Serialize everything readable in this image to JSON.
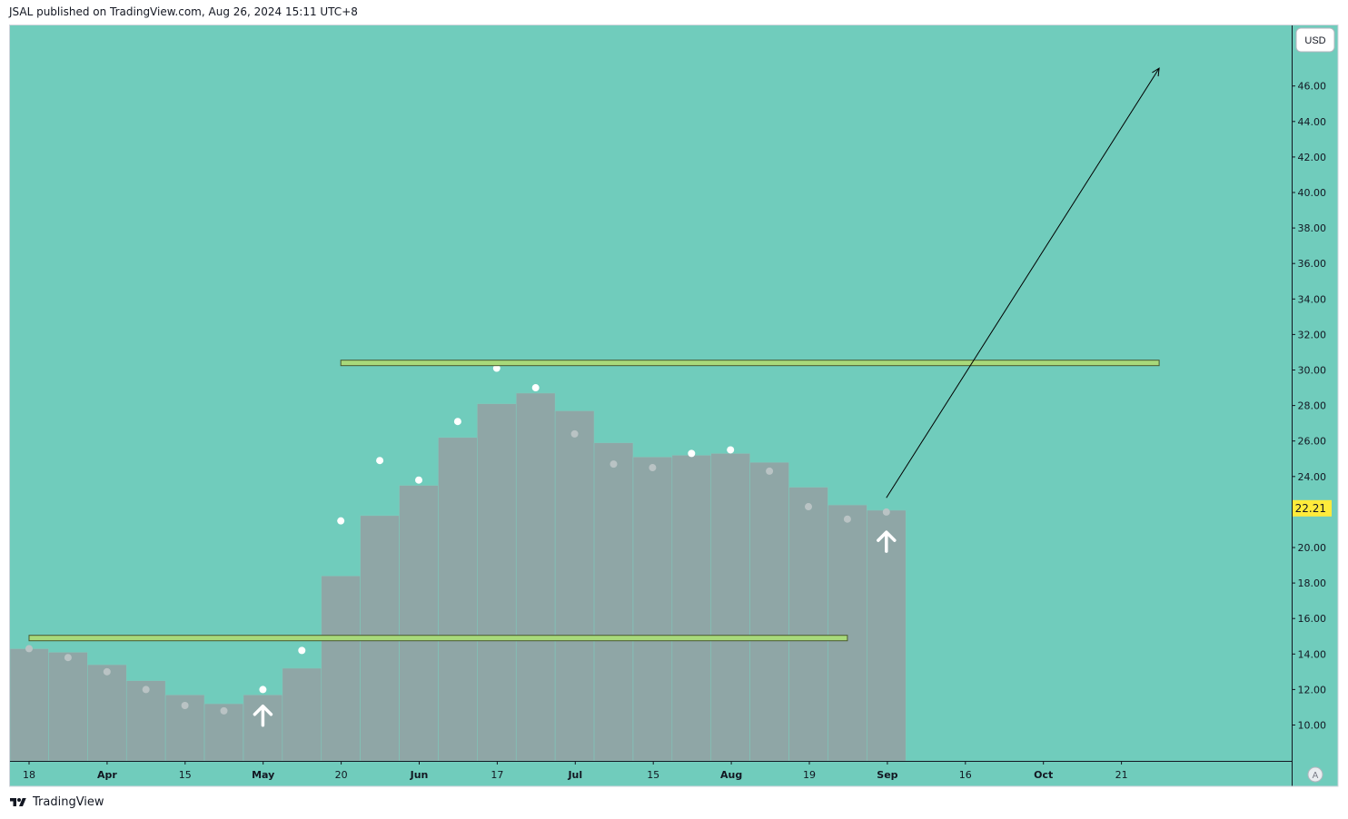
{
  "header": {
    "published_text": "JSAL published on TradingView.com, Aug 26, 2024 15:11 UTC+8"
  },
  "footer": {
    "brand": "TradingView"
  },
  "axis": {
    "currency": "USD",
    "last_price_label": "22.21",
    "scale_mode": "A"
  },
  "colors": {
    "background": "#70ccbc",
    "bars": "#8fa6a6",
    "bar_edge": "#7fc9bb",
    "dots_bright": "#ffffff",
    "dots_faint": "#b9c3c4",
    "level_fill": "#a8d97a",
    "level_stroke": "#4a5a30",
    "price_tag": "#ffeb3b",
    "arrow": "#000000"
  },
  "chart_data": {
    "type": "bar",
    "title": "",
    "x_labels": [
      "18",
      "Apr",
      "15",
      "May",
      "20",
      "Jun",
      "17",
      "Jul",
      "15",
      "Aug",
      "19",
      "Sep",
      "16",
      "Oct",
      "21"
    ],
    "y_ticks": [
      "10.00",
      "12.00",
      "14.00",
      "16.00",
      "18.00",
      "20.00",
      "22.00",
      "24.00",
      "26.00",
      "28.00",
      "30.00",
      "32.00",
      "34.00",
      "36.00",
      "38.00",
      "40.00",
      "42.00",
      "44.00",
      "46.00"
    ],
    "ylim": [
      8.0,
      47.4
    ],
    "week_index_range": [
      0,
      33
    ],
    "bars": [
      {
        "week": 0,
        "value": 14.3
      },
      {
        "week": 1,
        "value": 14.1
      },
      {
        "week": 2,
        "value": 13.4
      },
      {
        "week": 3,
        "value": 12.5
      },
      {
        "week": 4,
        "value": 11.7
      },
      {
        "week": 5,
        "value": 11.2
      },
      {
        "week": 6,
        "value": 11.7
      },
      {
        "week": 7,
        "value": 13.2
      },
      {
        "week": 8,
        "value": 18.4
      },
      {
        "week": 9,
        "value": 21.8
      },
      {
        "week": 10,
        "value": 23.5
      },
      {
        "week": 11,
        "value": 26.2
      },
      {
        "week": 12,
        "value": 28.1
      },
      {
        "week": 13,
        "value": 28.7
      },
      {
        "week": 14,
        "value": 27.7
      },
      {
        "week": 15,
        "value": 25.9
      },
      {
        "week": 16,
        "value": 25.1
      },
      {
        "week": 17,
        "value": 25.2
      },
      {
        "week": 18,
        "value": 25.3
      },
      {
        "week": 19,
        "value": 24.8
      },
      {
        "week": 20,
        "value": 23.4
      },
      {
        "week": 21,
        "value": 22.4
      },
      {
        "week": 22,
        "value": 22.1
      }
    ],
    "dots": [
      {
        "week": 0,
        "value": 14.3,
        "style": "faint"
      },
      {
        "week": 1,
        "value": 13.8,
        "style": "faint"
      },
      {
        "week": 2,
        "value": 13.0,
        "style": "faint"
      },
      {
        "week": 3,
        "value": 12.0,
        "style": "faint"
      },
      {
        "week": 4,
        "value": 11.1,
        "style": "faint"
      },
      {
        "week": 5,
        "value": 10.8,
        "style": "faint"
      },
      {
        "week": 6,
        "value": 12.0,
        "style": "bright"
      },
      {
        "week": 7,
        "value": 14.2,
        "style": "bright"
      },
      {
        "week": 8,
        "value": 21.5,
        "style": "bright"
      },
      {
        "week": 9,
        "value": 24.9,
        "style": "bright"
      },
      {
        "week": 10,
        "value": 23.8,
        "style": "bright"
      },
      {
        "week": 11,
        "value": 27.1,
        "style": "bright"
      },
      {
        "week": 12,
        "value": 30.1,
        "style": "bright"
      },
      {
        "week": 13,
        "value": 29.0,
        "style": "bright"
      },
      {
        "week": 14,
        "value": 26.4,
        "style": "faint"
      },
      {
        "week": 15,
        "value": 24.7,
        "style": "faint"
      },
      {
        "week": 16,
        "value": 24.5,
        "style": "faint"
      },
      {
        "week": 17,
        "value": 25.3,
        "style": "bright"
      },
      {
        "week": 18,
        "value": 25.5,
        "style": "bright"
      },
      {
        "week": 19,
        "value": 24.3,
        "style": "faint"
      },
      {
        "week": 20,
        "value": 22.3,
        "style": "faint"
      },
      {
        "week": 21,
        "value": 21.6,
        "style": "faint"
      },
      {
        "week": 22,
        "value": 22.0,
        "style": "faint"
      }
    ],
    "levels": [
      {
        "name": "support",
        "value": 14.9,
        "from_week": 0,
        "to_week": 21
      },
      {
        "name": "resistance",
        "value": 30.4,
        "from_week": 8,
        "to_week": 29
      }
    ],
    "signals": [
      {
        "week": 6,
        "value": 10.5,
        "type": "buy-arrow"
      },
      {
        "week": 22,
        "value": 20.3,
        "type": "buy-arrow"
      }
    ],
    "projection": {
      "from": {
        "week": 22,
        "value": 22.8
      },
      "to": {
        "week": 29,
        "value": 47.0
      }
    },
    "last_price": 22.21,
    "grid": false
  }
}
